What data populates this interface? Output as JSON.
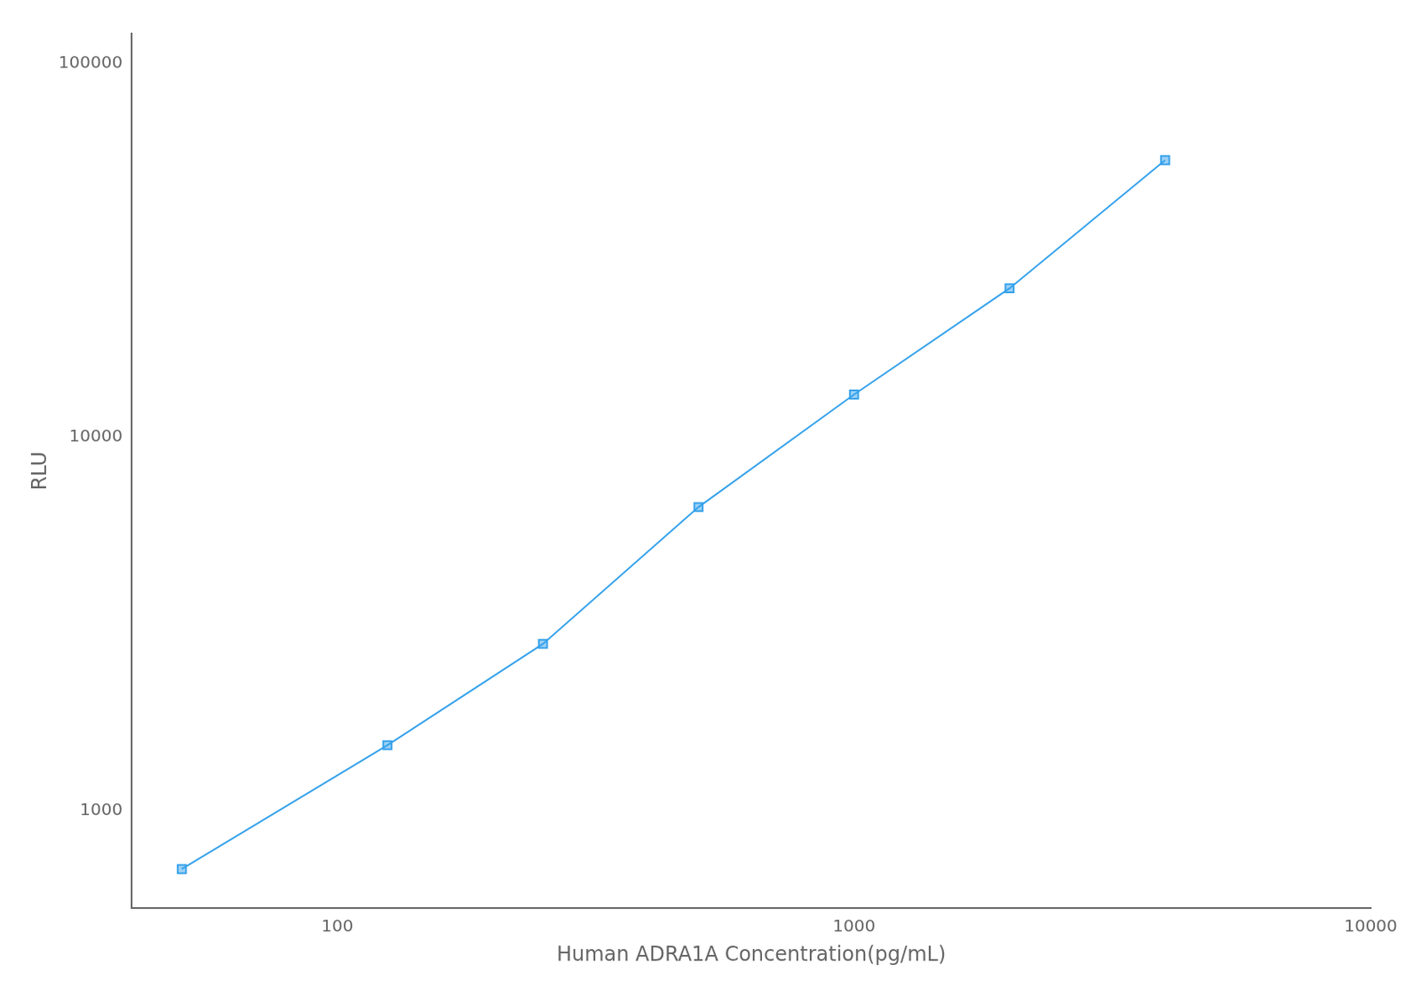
{
  "chart_data": {
    "type": "line",
    "x": [
      50,
      125,
      250,
      500,
      1000,
      2000,
      4000
    ],
    "values": [
      700,
      1500,
      2800,
      6500,
      13000,
      25000,
      55000
    ],
    "xlabel": "Human ADRA1A Concentration(pg/mL)",
    "ylabel": "RLU",
    "xlim": [
      40,
      10000
    ],
    "ylim": [
      550,
      120000
    ],
    "xticks": [
      100,
      1000,
      10000
    ],
    "yticks": [
      1000,
      10000,
      100000
    ],
    "log": true,
    "grid": false,
    "marker": "square"
  }
}
